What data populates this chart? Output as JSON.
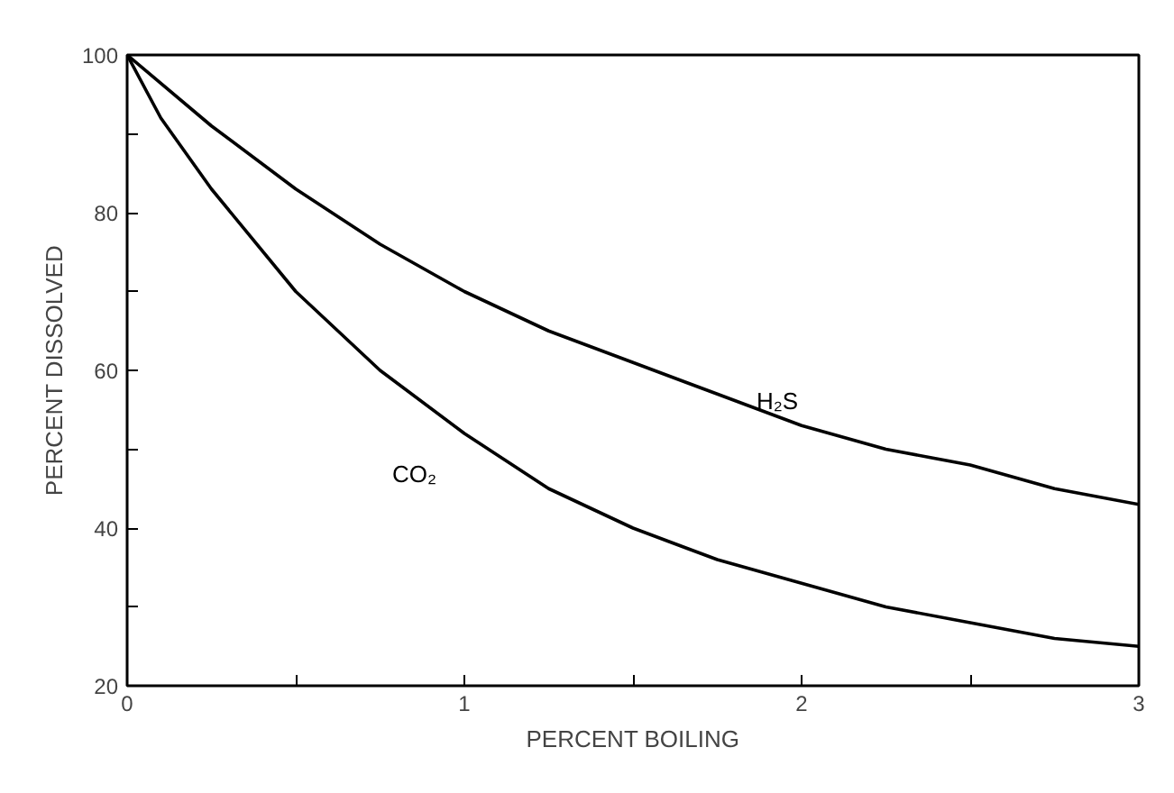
{
  "chart_data": {
    "type": "line",
    "xlabel": "PERCENT BOILING",
    "ylabel": "PERCENT DISSOLVED",
    "xlim": [
      0,
      3
    ],
    "ylim": [
      20,
      100
    ],
    "xticks": [
      0,
      {
        "value": 0.5,
        "label": null
      },
      1,
      {
        "value": 1.5,
        "label": null
      },
      2,
      {
        "value": 2.5,
        "label": null
      },
      3
    ],
    "yticks": [
      20,
      {
        "value": 30,
        "label": null
      },
      40,
      {
        "value": 50,
        "label": null
      },
      60,
      {
        "value": 70,
        "label": null
      },
      80,
      {
        "value": 90,
        "label": null
      },
      100
    ],
    "grid": false,
    "marker": "none",
    "line_style": "solid",
    "series": [
      {
        "name": "H₂S",
        "color": "#000000",
        "x": [
          0,
          0.25,
          0.5,
          0.75,
          1,
          1.25,
          1.5,
          1.75,
          2,
          2.25,
          2.5,
          2.75,
          3
        ],
        "values": [
          100,
          91,
          83,
          76,
          70,
          65,
          61,
          57,
          53,
          50,
          48,
          45,
          43
        ]
      },
      {
        "name": "CO₂",
        "color": "#000000",
        "x": [
          0,
          0.1,
          0.25,
          0.5,
          0.75,
          1,
          1.25,
          1.5,
          1.75,
          2,
          2.25,
          2.5,
          2.75,
          3
        ],
        "values": [
          100,
          92,
          83,
          70,
          60,
          52,
          45,
          40,
          36,
          33,
          30,
          28,
          26,
          25
        ]
      }
    ]
  }
}
